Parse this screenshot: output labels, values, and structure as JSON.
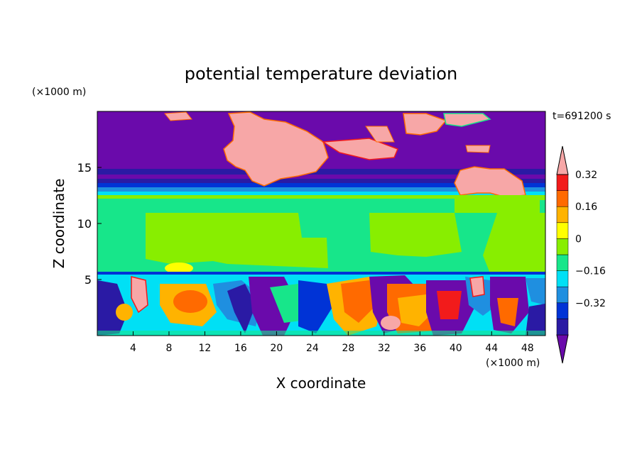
{
  "chart_data": {
    "type": "heatmap",
    "title": "potential temperature deviation",
    "xlabel": "X coordinate",
    "ylabel": "Z coordinate",
    "x_unit": "(×1000 m)",
    "y_unit": "(×1000 m)",
    "time_label": "t=691200 s",
    "xlim": [
      0,
      50
    ],
    "ylim": [
      0,
      20
    ],
    "xticks": [
      4,
      8,
      12,
      16,
      20,
      24,
      28,
      32,
      36,
      40,
      44,
      48
    ],
    "yticks": [
      5,
      10,
      15
    ],
    "colorbar": {
      "labeled_levels": [
        "0.32",
        "0.16",
        "0",
        "−0.16",
        "−0.32"
      ],
      "bins": [
        {
          "range": "< -0.40",
          "color": "#6a0aab"
        },
        {
          "range": "-0.40 to -0.32",
          "color": "#2a1aa4"
        },
        {
          "range": "-0.32 to -0.24",
          "color": "#0033d6"
        },
        {
          "range": "-0.24 to -0.16",
          "color": "#1f8fe0"
        },
        {
          "range": "-0.16 to -0.08",
          "color": "#00e0f5"
        },
        {
          "range": "-0.08 to 0",
          "color": "#17e68a"
        },
        {
          "range": "0 to 0.08",
          "color": "#88ee00"
        },
        {
          "range": "0.08 to 0.16",
          "color": "#ffff00"
        },
        {
          "range": "0.16 to 0.24",
          "color": "#ffb300"
        },
        {
          "range": "0.24 to 0.32",
          "color": "#ff6a00"
        },
        {
          "range": "0.32 to 0.40",
          "color": "#f21b1b"
        },
        {
          "range": "> 0.40",
          "color": "#f7a7a7"
        }
      ]
    },
    "field_regions": [
      {
        "z_range": [
          0,
          5.4
        ],
        "dominant": "turbulent mix from -0.40 to > 0.40"
      },
      {
        "z_range": [
          5.4,
          12.5
        ],
        "dominant": "-0.08 to 0.08"
      },
      {
        "z_range": [
          12.5,
          13.5
        ],
        "dominant": "-0.40 to -0.16"
      },
      {
        "z_range": [
          13.5,
          20
        ],
        "dominant": "< -0.40 with > 0.40 patches"
      }
    ]
  }
}
